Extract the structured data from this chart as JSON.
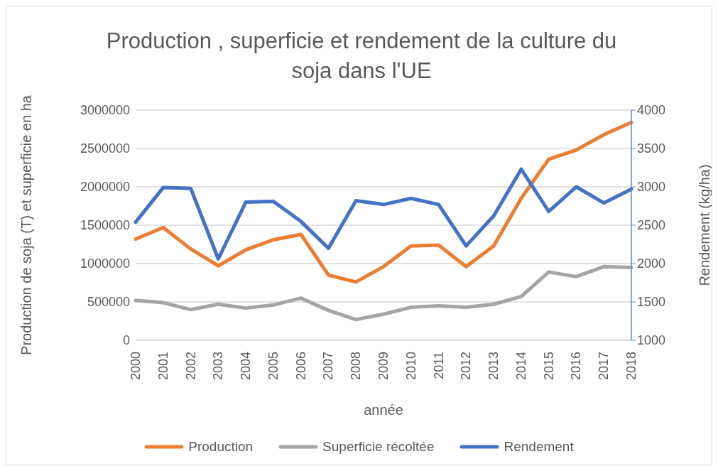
{
  "chart_data": {
    "type": "line",
    "title": "Production , superficie et rendement de la culture du soja dans l'UE",
    "xlabel": "année",
    "ylabel": "Production de soja (T) et superficie en ha",
    "y2label": "Rendement (kg/ha)",
    "categories": [
      "2000",
      "2001",
      "2002",
      "2003",
      "2004",
      "2005",
      "2006",
      "2007",
      "2008",
      "2009",
      "2010",
      "2011",
      "2012",
      "2013",
      "2014",
      "2015",
      "2016",
      "2017",
      "2018"
    ],
    "series": [
      {
        "name": "Production",
        "color": "#ed7d31",
        "values": [
          1320000,
          1470000,
          1190000,
          970000,
          1180000,
          1310000,
          1380000,
          850000,
          760000,
          960000,
          1230000,
          1240000,
          960000,
          1230000,
          1850000,
          2360000,
          2480000,
          2680000,
          2840000
        ]
      },
      {
        "name": "Superficie récoltée",
        "color": "#a5a5a5",
        "values": [
          520000,
          490000,
          400000,
          470000,
          420000,
          460000,
          550000,
          390000,
          270000,
          340000,
          430000,
          450000,
          430000,
          470000,
          570000,
          890000,
          830000,
          960000,
          950000
        ]
      },
      {
        "name": "Rendement",
        "color": "#4472c4",
        "axis": "y2",
        "values": [
          2540,
          2990,
          2980,
          2060,
          2800,
          2810,
          2550,
          2200,
          2820,
          2770,
          2850,
          2770,
          2230,
          2620,
          3230,
          2680,
          3000,
          2790,
          2970
        ]
      }
    ],
    "ylim": [
      0,
      3000000
    ],
    "yticks": [
      0,
      500000,
      1000000,
      1500000,
      2000000,
      2500000,
      3000000
    ],
    "y2lim": [
      1000,
      4000
    ],
    "y2ticks": [
      1000,
      1500,
      2000,
      2500,
      3000,
      3500,
      4000
    ],
    "grid": "y",
    "legend": "bottom",
    "marker": "none",
    "line_style": "solid"
  }
}
